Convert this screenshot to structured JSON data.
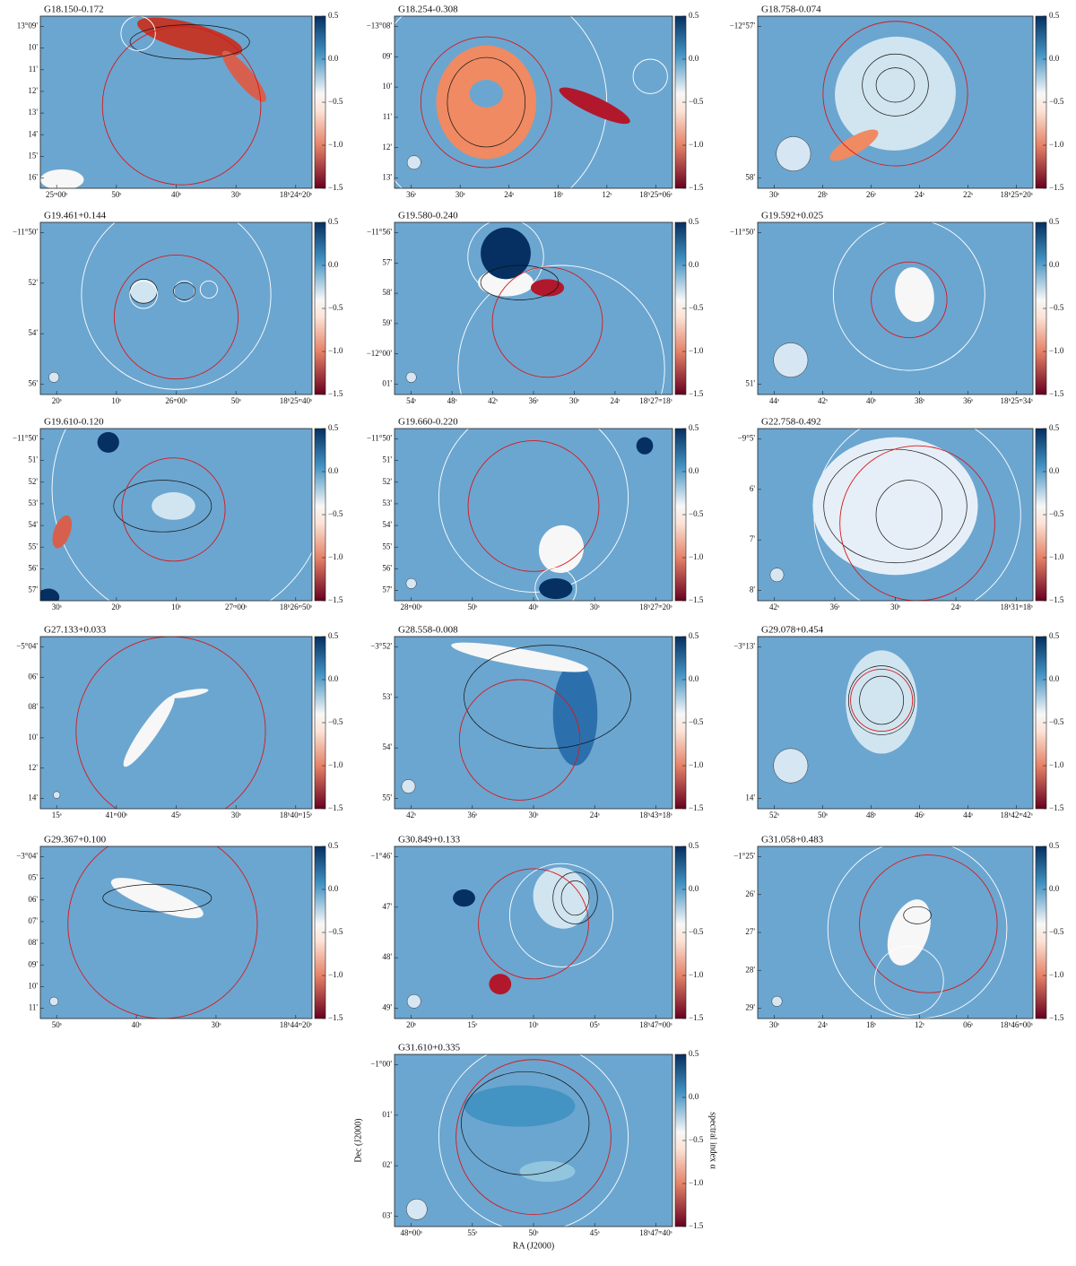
{
  "colorbar_ticks": [
    "0.5",
    "0.0",
    "−0.5",
    "−1.0",
    "−1.5"
  ],
  "axis_labels": {
    "x": "RA (J2000)",
    "y": "Dec (J2000)",
    "colorbar": "spectral index α"
  },
  "panels": [
    {
      "title": "G18.150-0.172",
      "yticks": [
        "13°09'",
        "10'",
        "11'",
        "12'",
        "13'",
        "14'",
        "15'",
        "16'"
      ],
      "xticks": [
        "25ᵐ00ˢ",
        "50ˢ",
        "40ˢ",
        "30ˢ",
        "18ʰ24ᵐ20ˢ"
      ]
    },
    {
      "title": "G18.254-0.308",
      "yticks": [
        "−13°08'",
        "09'",
        "10'",
        "11'",
        "12'",
        "13'"
      ],
      "xticks": [
        "36ˢ",
        "30ˢ",
        "24ˢ",
        "18ˢ",
        "12ˢ",
        "18ʰ25ᵐ06ˢ"
      ]
    },
    {
      "title": "G18.758-0.074",
      "yticks": [
        "−12°57'",
        "58'"
      ],
      "xticks": [
        "30ˢ",
        "28ˢ",
        "26ˢ",
        "24ˢ",
        "22ˢ",
        "18ʰ25ᵐ20ˢ"
      ]
    },
    {
      "title": "G19.461+0.144",
      "yticks": [
        "−11°50'",
        "52'",
        "54'",
        "56'"
      ],
      "xticks": [
        "20ˢ",
        "10ˢ",
        "26ᵐ00ˢ",
        "50ˢ",
        "18ʰ25ᵐ40ˢ"
      ]
    },
    {
      "title": "G19.580-0.240",
      "yticks": [
        "−11°56'",
        "57'",
        "58'",
        "59'",
        "−12°00'",
        "01'"
      ],
      "xticks": [
        "54ˢ",
        "48ˢ",
        "42ˢ",
        "36ˢ",
        "30ˢ",
        "24ˢ",
        "18ʰ27ᵐ18ˢ"
      ]
    },
    {
      "title": "G19.592+0.025",
      "yticks": [
        "−11°50'",
        "51'"
      ],
      "xticks": [
        "44ˢ",
        "42ˢ",
        "40ˢ",
        "38ˢ",
        "36ˢ",
        "18ʰ25ᵐ34ˢ"
      ]
    },
    {
      "title": "G19.610-0.120",
      "yticks": [
        "−11°50'",
        "51'",
        "52'",
        "53'",
        "54'",
        "55'",
        "56'",
        "57'"
      ],
      "xticks": [
        "30ˢ",
        "20ˢ",
        "10ˢ",
        "27ᵐ00ˢ",
        "18ʰ26ᵐ50ˢ"
      ]
    },
    {
      "title": "G19.660-0.220",
      "yticks": [
        "−11°50'",
        "51'",
        "52'",
        "53'",
        "54'",
        "55'",
        "56'",
        "57'"
      ],
      "xticks": [
        "28ᵐ00ˢ",
        "50ˢ",
        "40ˢ",
        "30ˢ",
        "18ʰ27ᵐ20ˢ"
      ]
    },
    {
      "title": "G22.758-0.492",
      "yticks": [
        "−9°5'",
        "6'",
        "7'",
        "8'"
      ],
      "xticks": [
        "42ˢ",
        "36ˢ",
        "30ˢ",
        "24ˢ",
        "18ʰ31ᵐ18ˢ"
      ]
    },
    {
      "title": "G27.133+0.033",
      "yticks": [
        "−5°04'",
        "06'",
        "08'",
        "10'",
        "12'",
        "14'"
      ],
      "xticks": [
        "15ˢ",
        "41ᵐ00ˢ",
        "45ˢ",
        "30ˢ",
        "18ʰ40ᵐ15ˢ"
      ]
    },
    {
      "title": "G28.558-0.008",
      "yticks": [
        "−3°52'",
        "53'",
        "54'",
        "55'"
      ],
      "xticks": [
        "42ˢ",
        "36ˢ",
        "30ˢ",
        "24ˢ",
        "18ʰ43ᵐ18ˢ"
      ]
    },
    {
      "title": "G29.078+0.454",
      "yticks": [
        "−3°13'",
        "14'"
      ],
      "xticks": [
        "52ˢ",
        "50ˢ",
        "48ˢ",
        "46ˢ",
        "44ˢ",
        "18ʰ42ᵐ42ˢ"
      ]
    },
    {
      "title": "G29.367+0.100",
      "yticks": [
        "−3°04'",
        "05'",
        "06'",
        "07'",
        "08'",
        "09'",
        "10'",
        "11'"
      ],
      "xticks": [
        "50ˢ",
        "40ˢ",
        "30ˢ",
        "18ʰ44ᵐ20ˢ"
      ]
    },
    {
      "title": "G30.849+0.133",
      "yticks": [
        "−1°46'",
        "47'",
        "48'",
        "49'"
      ],
      "xticks": [
        "20ˢ",
        "15ˢ",
        "10ˢ",
        "05ˢ",
        "18ʰ47ᵐ00ˢ"
      ]
    },
    {
      "title": "G31.058+0.483",
      "yticks": [
        "−1°25'",
        "26'",
        "27'",
        "28'",
        "29'"
      ],
      "xticks": [
        "30ˢ",
        "24ˢ",
        "18ˢ",
        "12ˢ",
        "06ˢ",
        "18ʰ46ᵐ00ˢ"
      ]
    },
    {
      "title": "G31.610+0.335",
      "yticks": [
        "−1°00'",
        "01'",
        "02'",
        "03'"
      ],
      "xticks": [
        "48ᵐ00ˢ",
        "55ˢ",
        "50ˢ",
        "45ˢ",
        "18ʰ47ᵐ40ˢ"
      ]
    }
  ]
}
